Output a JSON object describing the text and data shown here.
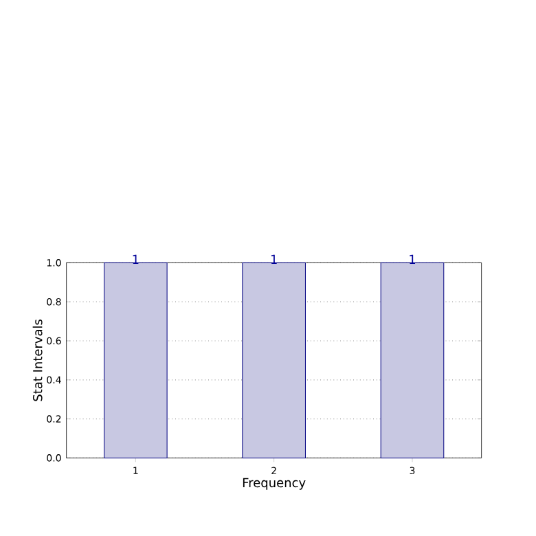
{
  "chart_data": {
    "type": "bar",
    "xlabel": "Frequency",
    "ylabel": "Stat Intervals",
    "categories": [
      "1",
      "2",
      "3"
    ],
    "values": [
      1,
      1,
      1
    ],
    "color": "#c8c8e2",
    "ylim": [
      0,
      1
    ],
    "yticks": [
      {
        "value": 0,
        "label": "0.0"
      },
      {
        "value": 0.2,
        "label": "0.2"
      },
      {
        "value": 0.4,
        "label": "0.4"
      },
      {
        "value": 0.6,
        "label": "0.6"
      },
      {
        "value": 0.8,
        "label": "0.8"
      },
      {
        "value": 1,
        "label": "1.0"
      }
    ],
    "grid": true,
    "data_labels": true
  }
}
